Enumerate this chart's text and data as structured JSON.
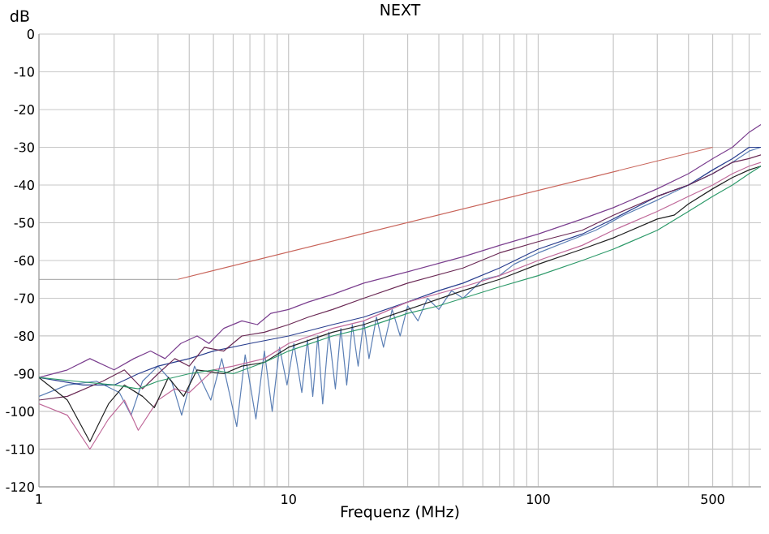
{
  "chart_data": {
    "type": "line",
    "title": "NEXT",
    "xlabel": "Frequenz (MHz)",
    "ylabel": "dB",
    "log": "x",
    "grid": true,
    "marker": "none",
    "line_style": "solid",
    "xlim": [
      1,
      780
    ],
    "ylim": [
      -120,
      0
    ],
    "xticks": [
      1,
      {
        "value": 2,
        "label": null
      },
      {
        "value": 3,
        "label": null
      },
      {
        "value": 4,
        "label": null
      },
      {
        "value": 5,
        "label": null
      },
      {
        "value": 6,
        "label": null
      },
      {
        "value": 7,
        "label": null
      },
      {
        "value": 8,
        "label": null
      },
      {
        "value": 9,
        "label": null
      },
      10,
      {
        "value": 20,
        "label": null
      },
      {
        "value": 30,
        "label": null
      },
      {
        "value": 40,
        "label": null
      },
      {
        "value": 50,
        "label": null
      },
      {
        "value": 60,
        "label": null
      },
      {
        "value": 70,
        "label": null
      },
      {
        "value": 80,
        "label": null
      },
      {
        "value": 90,
        "label": null
      },
      100,
      {
        "value": 200,
        "label": null
      },
      {
        "value": 300,
        "label": null
      },
      {
        "value": 400,
        "label": null
      },
      500,
      {
        "value": 600,
        "label": null
      },
      {
        "value": 700,
        "label": null
      }
    ],
    "yticks": [
      0,
      -10,
      -20,
      -30,
      -40,
      -50,
      -60,
      -70,
      -80,
      -90,
      -100,
      -110,
      -120
    ],
    "series": [
      {
        "color": "#999999",
        "x": [
          1,
          3.6
        ],
        "values": [
          -65,
          -65
        ]
      },
      {
        "color": "#c8645a",
        "x": [
          3.6,
          500
        ],
        "values": [
          -65,
          -30
        ]
      },
      {
        "color": "#5b7fb5",
        "x": [
          1,
          1.3,
          1.7,
          2.1,
          2.34,
          2.6,
          3.0,
          3.4,
          3.73,
          4.2,
          4.88,
          5.4,
          6.2,
          6.7,
          7.4,
          8.0,
          8.6,
          9.2,
          9.86,
          10.5,
          11.3,
          11.9,
          12.5,
          13.1,
          13.7,
          14.5,
          15.4,
          16.2,
          17.1,
          18,
          19,
          20,
          21,
          22.5,
          24,
          26,
          28,
          30,
          33,
          36,
          40,
          45,
          50,
          60,
          70,
          80,
          100,
          130,
          170,
          220,
          300,
          400,
          500,
          600,
          700,
          780
        ],
        "values": [
          -96,
          -93,
          -92,
          -95,
          -101,
          -92,
          -88,
          -92,
          -101,
          -88,
          -97,
          -86,
          -104,
          -85,
          -102,
          -84,
          -100,
          -83,
          -93,
          -82,
          -95,
          -81,
          -96,
          -80,
          -98,
          -79,
          -94,
          -78,
          -93,
          -77,
          -88,
          -76,
          -86,
          -75,
          -83,
          -73,
          -80,
          -72,
          -76,
          -70,
          -73,
          -68,
          -70,
          -65,
          -64,
          -61,
          -58,
          -55,
          -52,
          -48,
          -44,
          -40,
          -37,
          -34,
          -31,
          -30
        ]
      },
      {
        "color": "#2a3f8f",
        "x": [
          1,
          1.5,
          2,
          2.5,
          3,
          4,
          5,
          7,
          10,
          15,
          20,
          30,
          40,
          50,
          70,
          100,
          150,
          200,
          300,
          400,
          500,
          600,
          700,
          780
        ],
        "values": [
          -91,
          -93,
          -93,
          -90,
          -88,
          -86,
          -84,
          -82,
          -80,
          -77,
          -75,
          -71,
          -68,
          -66,
          -62,
          -57,
          -53,
          -49,
          -43,
          -40,
          -36,
          -33,
          -30,
          -30
        ]
      },
      {
        "color": "#7b3f8f",
        "x": [
          1,
          1.3,
          1.6,
          2,
          2.4,
          2.8,
          3.2,
          3.7,
          4.3,
          4.8,
          5.5,
          6.5,
          7.5,
          8.5,
          10,
          12,
          15,
          20,
          30,
          50,
          70,
          100,
          150,
          200,
          300,
          400,
          500,
          600,
          700,
          780
        ],
        "values": [
          -91,
          -89,
          -86,
          -89,
          -86,
          -84,
          -86,
          -82,
          -80,
          -82,
          -78,
          -76,
          -77,
          -74,
          -73,
          -71,
          -69,
          -66,
          -63,
          -59,
          -56,
          -53,
          -49,
          -46,
          -41,
          -37,
          -33,
          -30,
          -26,
          -24
        ]
      },
      {
        "color": "#6b2a55",
        "x": [
          1,
          1.3,
          1.8,
          2.2,
          2.6,
          3.0,
          3.5,
          4,
          4.6,
          5.5,
          6.5,
          8,
          10,
          12,
          15,
          20,
          30,
          50,
          70,
          100,
          150,
          200,
          300,
          400,
          500,
          600,
          700,
          780
        ],
        "values": [
          -97,
          -96,
          -92,
          -89,
          -94,
          -90,
          -86,
          -88,
          -83,
          -84,
          -80,
          -79,
          -77,
          -75,
          -73,
          -70,
          -66,
          -62,
          -58,
          -55,
          -52,
          -48,
          -43,
          -40,
          -37,
          -34,
          -33,
          -32
        ]
      },
      {
        "color": "#c06a9a",
        "x": [
          1,
          1.3,
          1.6,
          1.9,
          2.2,
          2.5,
          3,
          3.5,
          4,
          5,
          6,
          8,
          10,
          15,
          20,
          30,
          50,
          70,
          100,
          150,
          200,
          300,
          400,
          500,
          600,
          700,
          780
        ],
        "values": [
          -98,
          -101,
          -110,
          -102,
          -97,
          -105,
          -97,
          -94,
          -95,
          -89,
          -88,
          -86,
          -82,
          -78,
          -76,
          -71,
          -67,
          -64,
          -60,
          -56,
          -52,
          -47,
          -43,
          -40,
          -37,
          -35,
          -34
        ]
      },
      {
        "color": "#222222",
        "x": [
          1,
          1.3,
          1.6,
          1.9,
          2.2,
          2.6,
          2.9,
          3.3,
          3.8,
          4.3,
          5.5,
          6.5,
          8,
          10,
          15,
          20,
          30,
          50,
          70,
          100,
          150,
          200,
          300,
          350,
          400,
          500,
          600,
          700,
          780
        ],
        "values": [
          -91,
          -97,
          -108,
          -98,
          -93,
          -96,
          -99,
          -91,
          -96,
          -89,
          -90,
          -88,
          -87,
          -83,
          -79,
          -77,
          -73,
          -68,
          -65,
          -61,
          -57,
          -54,
          -49,
          -48,
          -45,
          -41,
          -38,
          -36,
          -35
        ]
      },
      {
        "color": "#2e9a6a",
        "x": [
          1,
          1.4,
          2,
          2.5,
          3,
          4,
          5,
          6,
          8,
          10,
          15,
          20,
          30,
          40,
          50,
          70,
          100,
          150,
          200,
          300,
          400,
          500,
          600,
          700,
          780
        ],
        "values": [
          -91,
          -92,
          -93,
          -94,
          -92,
          -90,
          -89,
          -90,
          -87,
          -84,
          -80,
          -78,
          -74,
          -72,
          -70,
          -67,
          -64,
          -60,
          -57,
          -52,
          -47,
          -43,
          -40,
          -37,
          -35
        ]
      }
    ]
  }
}
